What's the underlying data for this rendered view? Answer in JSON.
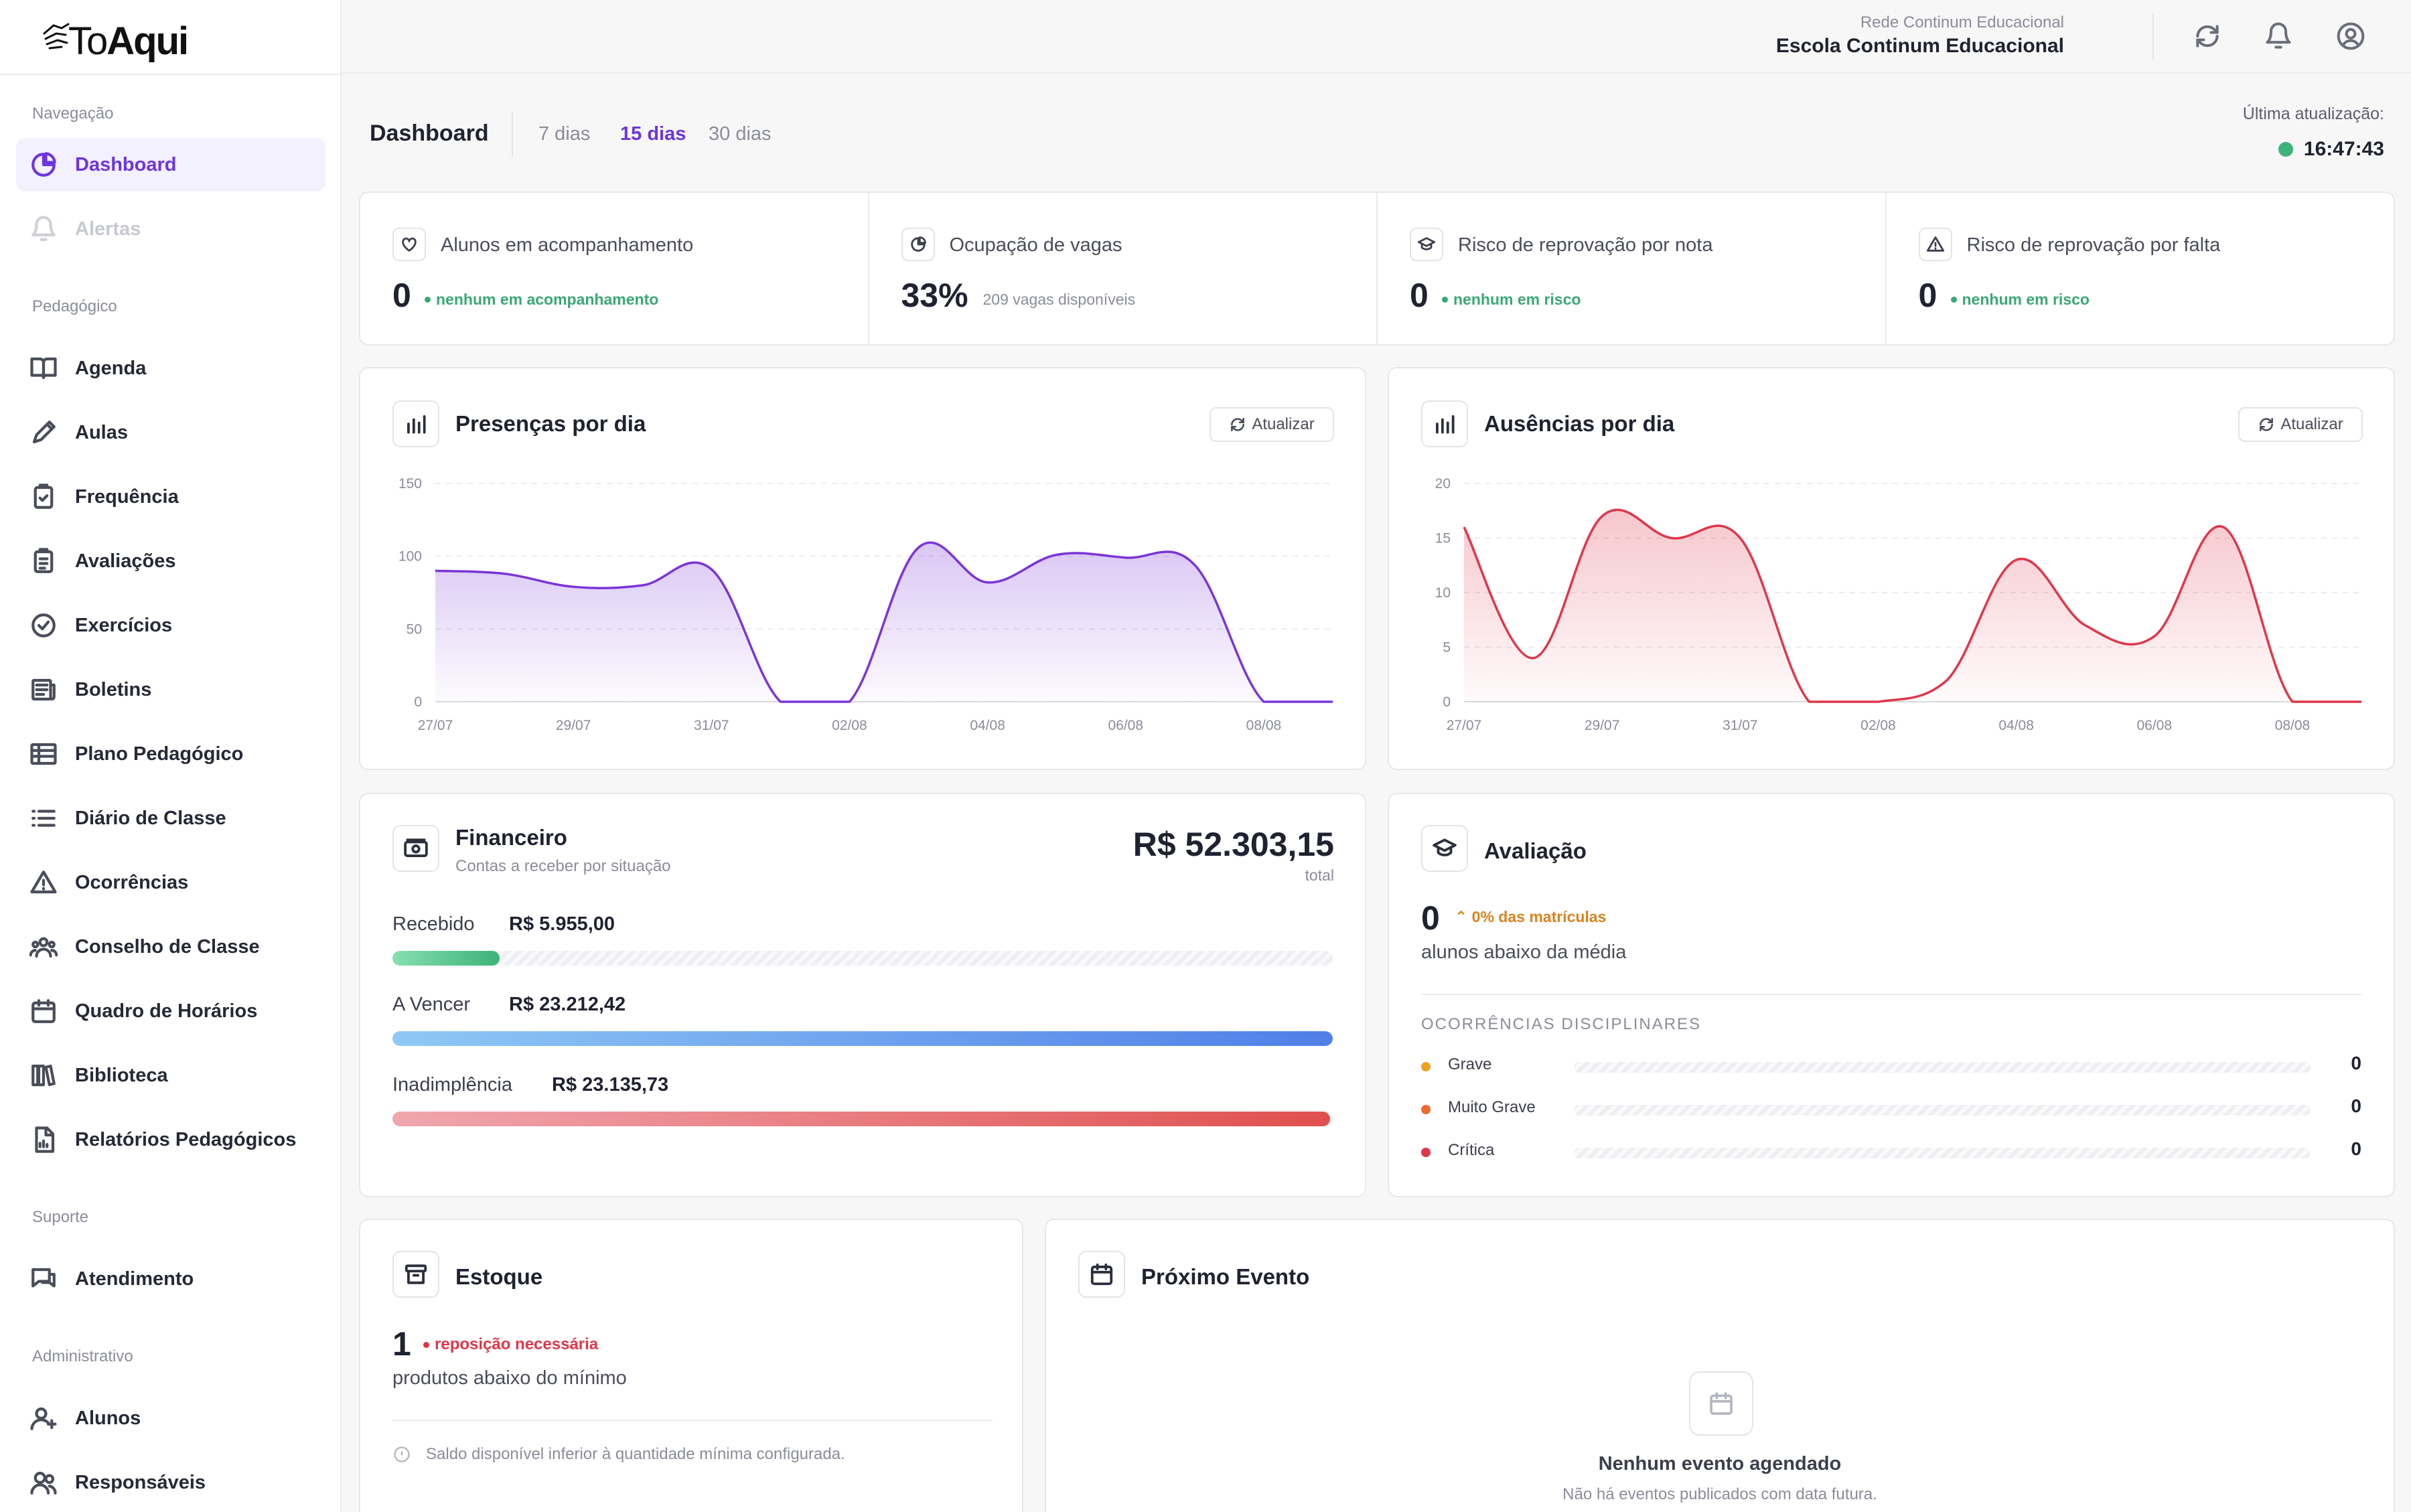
{
  "brand": {
    "logo_light": "To",
    "logo_bold": "Aqui"
  },
  "header": {
    "network": "Rede Continum Educacional",
    "school": "Escola Continum Educacional"
  },
  "sidebar": {
    "sections": [
      {
        "label": "Navegação"
      },
      {
        "label": "Pedagógico"
      },
      {
        "label": "Suporte"
      },
      {
        "label": "Administrativo"
      }
    ],
    "items": [
      {
        "label": "Dashboard",
        "icon": "pie-chart-icon",
        "active": true
      },
      {
        "label": "Alertas",
        "icon": "bell-icon",
        "disabled": true
      },
      {
        "label": "Agenda",
        "icon": "book-open-icon"
      },
      {
        "label": "Aulas",
        "icon": "pencil-icon"
      },
      {
        "label": "Frequência",
        "icon": "clipboard-check-icon"
      },
      {
        "label": "Avaliações",
        "icon": "clipboard-list-icon"
      },
      {
        "label": "Exercícios",
        "icon": "check-circle-icon"
      },
      {
        "label": "Boletins",
        "icon": "newspaper-icon"
      },
      {
        "label": "Plano Pedagógico",
        "icon": "table-icon"
      },
      {
        "label": "Diário de Classe",
        "icon": "list-icon"
      },
      {
        "label": "Ocorrências",
        "icon": "warning-triangle-icon"
      },
      {
        "label": "Conselho de Classe",
        "icon": "users-group-icon"
      },
      {
        "label": "Quadro de Horários",
        "icon": "calendar-icon"
      },
      {
        "label": "Biblioteca",
        "icon": "library-icon"
      },
      {
        "label": "Relatórios Pedagógicos",
        "icon": "report-icon"
      },
      {
        "label": "Atendimento",
        "icon": "chat-icon"
      },
      {
        "label": "Alunos",
        "icon": "user-plus-icon"
      },
      {
        "label": "Responsáveis",
        "icon": "users-icon"
      }
    ]
  },
  "page": {
    "title": "Dashboard",
    "ranges": [
      "7 dias",
      "15 dias",
      "30 dias"
    ],
    "active_range": "15 dias",
    "last_update_label": "Última atualização:",
    "last_update_time": "16:47:43"
  },
  "kpis": [
    {
      "title": "Alunos em acompanhamento",
      "value": "0",
      "sub": "nenhum em acompanhamento",
      "icon": "heart-icon"
    },
    {
      "title": "Ocupação de vagas",
      "value": "33%",
      "sub": "209 vagas disponíveis",
      "icon": "pie-icon"
    },
    {
      "title": "Risco de reprovação por nota",
      "value": "0",
      "sub": "nenhum em risco",
      "icon": "graduation-cap-icon"
    },
    {
      "title": "Risco de reprovação por falta",
      "value": "0",
      "sub": "nenhum em risco",
      "icon": "alert-triangle-icon"
    }
  ],
  "refresh_label": "Atualizar",
  "chart_data": [
    {
      "type": "area",
      "title": "Presenças por dia",
      "x": [
        "27/07",
        "28/07",
        "29/07",
        "30/07",
        "31/07",
        "01/08",
        "02/08",
        "03/08",
        "04/08",
        "05/08",
        "06/08",
        "07/08",
        "08/08",
        "09/08"
      ],
      "xticks": [
        "27/07",
        "29/07",
        "31/07",
        "02/08",
        "04/08",
        "06/08",
        "08/08"
      ],
      "values": [
        90,
        88,
        79,
        80,
        91,
        0,
        0,
        106,
        82,
        101,
        99,
        94,
        0,
        0
      ],
      "ylim": [
        0,
        150
      ],
      "yticks": [
        0,
        50,
        100,
        150
      ],
      "color": "#7b35d8",
      "grid": true
    },
    {
      "type": "area",
      "title": "Ausências por dia",
      "x": [
        "27/07",
        "28/07",
        "29/07",
        "30/07",
        "31/07",
        "01/08",
        "02/08",
        "03/08",
        "04/08",
        "05/08",
        "06/08",
        "07/08",
        "08/08",
        "09/08"
      ],
      "xticks": [
        "27/07",
        "29/07",
        "31/07",
        "02/08",
        "04/08",
        "06/08",
        "08/08"
      ],
      "values": [
        16,
        4,
        17,
        15,
        15,
        0,
        0,
        2,
        13,
        7,
        6,
        16,
        0,
        0
      ],
      "ylim": [
        0,
        20
      ],
      "yticks": [
        0,
        5,
        10,
        15,
        20
      ],
      "color": "#e0364a",
      "grid": true
    }
  ],
  "financeiro": {
    "title": "Financeiro",
    "subtitle": "Contas a receber por situação",
    "total": "R$ 52.303,15",
    "total_label": "total",
    "rows": [
      {
        "label": "Recebido",
        "value": "R$ 5.955,00",
        "fraction": 0.114,
        "color_from": "#86e0b0",
        "color_to": "#3db27a"
      },
      {
        "label": "A Vencer",
        "value": "R$ 23.212,42",
        "fraction": 1.0,
        "color_from": "#8fc8f5",
        "color_to": "#4f7fe8"
      },
      {
        "label": "Inadimplência",
        "value": "R$ 23.135,73",
        "fraction": 0.997,
        "color_from": "#f0a6ae",
        "color_to": "#e0504f"
      }
    ]
  },
  "avaliacao": {
    "title": "Avaliação",
    "value": "0",
    "badge": "0% das matrículas",
    "desc": "alunos abaixo da média",
    "section": "OCORRÊNCIAS DISCIPLINARES",
    "items": [
      {
        "label": "Grave",
        "value": "0",
        "color": "#f0a020"
      },
      {
        "label": "Muito Grave",
        "value": "0",
        "color": "#f06a2a"
      },
      {
        "label": "Crítica",
        "value": "0",
        "color": "#e0364a"
      }
    ]
  },
  "estoque": {
    "title": "Estoque",
    "value": "1",
    "badge": "reposição necessária",
    "desc": "produtos abaixo do mínimo",
    "note": "Saldo disponível inferior à quantidade mínima configurada."
  },
  "evento": {
    "title": "Próximo Evento",
    "empty_title": "Nenhum evento agendado",
    "empty_sub": "Não há eventos publicados com data futura."
  }
}
